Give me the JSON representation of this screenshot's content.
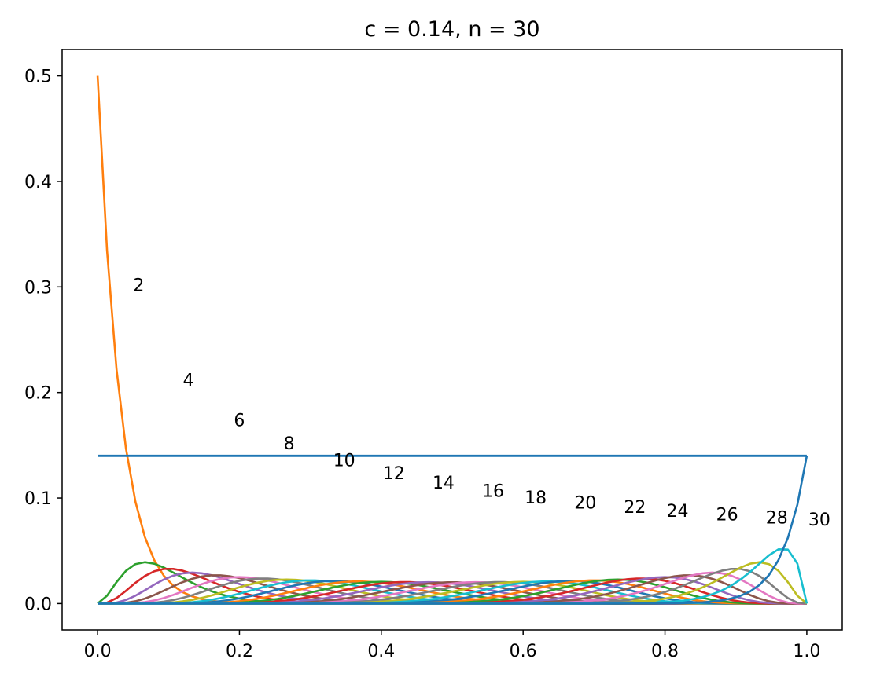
{
  "chart_data": {
    "type": "line",
    "title": "c = 0.14, n = 30",
    "xlabel": "",
    "ylabel": "",
    "xlim": [
      -0.05,
      1.05
    ],
    "ylim": [
      -0.025,
      0.525
    ],
    "xticks": [
      0.0,
      0.2,
      0.4,
      0.6,
      0.8,
      1.0
    ],
    "xtick_labels": [
      "0.0",
      "0.2",
      "0.4",
      "0.6",
      "0.8",
      "1.0"
    ],
    "yticks": [
      0.0,
      0.1,
      0.2,
      0.3,
      0.4,
      0.5
    ],
    "ytick_labels": [
      "0.0",
      "0.1",
      "0.2",
      "0.3",
      "0.4",
      "0.5"
    ],
    "grid": false,
    "legend": "none",
    "sample_points": 76,
    "horizontal_line": {
      "y": 0.14,
      "x_range": [
        0,
        1
      ],
      "color": "#1f77b4"
    },
    "series_formula": "y_k(x) = c * Binomial(n, k; x) for k = 1..30 with c = 0.14, n = 30; k = 1 curve: 0.5*(1-x)^30",
    "first_curve_peak": {
      "x": 0.0,
      "y": 0.5
    },
    "curve_labels": [
      {
        "text": "2",
        "x": 0.048,
        "y": 0.296
      },
      {
        "text": "4",
        "x": 0.118,
        "y": 0.206
      },
      {
        "text": "6",
        "x": 0.19,
        "y": 0.168
      },
      {
        "text": "8",
        "x": 0.26,
        "y": 0.146
      },
      {
        "text": "10",
        "x": 0.33,
        "y": 0.13
      },
      {
        "text": "12",
        "x": 0.4,
        "y": 0.118
      },
      {
        "text": "14",
        "x": 0.47,
        "y": 0.109
      },
      {
        "text": "16",
        "x": 0.54,
        "y": 0.101
      },
      {
        "text": "18",
        "x": 0.6,
        "y": 0.095
      },
      {
        "text": "20",
        "x": 0.67,
        "y": 0.09
      },
      {
        "text": "22",
        "x": 0.74,
        "y": 0.086
      },
      {
        "text": "24",
        "x": 0.8,
        "y": 0.082
      },
      {
        "text": "26",
        "x": 0.87,
        "y": 0.079
      },
      {
        "text": "28",
        "x": 0.94,
        "y": 0.076
      },
      {
        "text": "30",
        "x": 1.0,
        "y": 0.074
      }
    ],
    "colors": [
      "#1f77b4",
      "#ff7f0e",
      "#2ca02c",
      "#d62728",
      "#9467bd",
      "#8c564b",
      "#e377c2",
      "#7f7f7f",
      "#bcbd22",
      "#17becf"
    ]
  }
}
